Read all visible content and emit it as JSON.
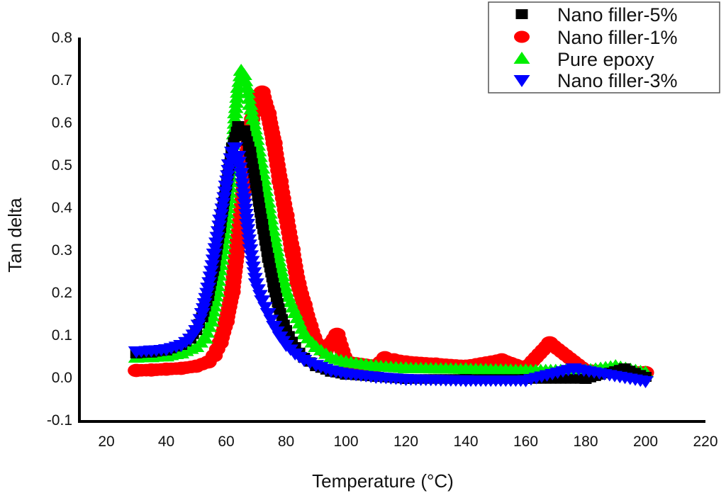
{
  "chart_data": {
    "type": "scatter",
    "title": "",
    "xlabel": "Temperature (°C)",
    "ylabel": "Tan delta",
    "xlim": [
      20,
      220
    ],
    "ylim": [
      -0.1,
      0.8
    ],
    "xticks": [
      "20",
      "40",
      "60",
      "80",
      "100",
      "120",
      "140",
      "160",
      "180",
      "200",
      "220"
    ],
    "yticks": [
      "0.8",
      "0.7",
      "0.6",
      "0.5",
      "0.4",
      "0.3",
      "0.2",
      "0.1",
      "0.0",
      "-0.1"
    ],
    "grid": false,
    "legend_position": "top-right",
    "series": [
      {
        "name": "Nano filler-5%",
        "marker": "square",
        "color": "#000000",
        "x": [
          30,
          35,
          40,
          45,
          48,
          50,
          52,
          54,
          56,
          58,
          60,
          62,
          64,
          66,
          68,
          70,
          72,
          74,
          76,
          78,
          80,
          83,
          86,
          90,
          95,
          100,
          110,
          120,
          140,
          160,
          180,
          193,
          200
        ],
        "y": [
          0.055,
          0.057,
          0.062,
          0.075,
          0.09,
          0.11,
          0.14,
          0.19,
          0.26,
          0.35,
          0.45,
          0.54,
          0.59,
          0.58,
          0.53,
          0.45,
          0.36,
          0.28,
          0.21,
          0.15,
          0.11,
          0.07,
          0.045,
          0.025,
          0.012,
          0.005,
          0.0,
          -0.005,
          -0.005,
          -0.005,
          -0.005,
          0.02,
          0.0
        ]
      },
      {
        "name": "Nano filler-1%",
        "marker": "circle",
        "color": "#ff0000",
        "x": [
          30,
          35,
          40,
          45,
          50,
          54,
          56,
          58,
          60,
          62,
          64,
          66,
          68,
          70,
          72,
          74,
          76,
          78,
          80,
          82,
          84,
          86,
          88,
          90,
          93,
          97,
          100,
          110,
          113,
          116,
          120,
          130,
          140,
          152,
          160,
          168,
          180,
          200
        ],
        "y": [
          0.015,
          0.016,
          0.018,
          0.02,
          0.025,
          0.035,
          0.05,
          0.08,
          0.13,
          0.2,
          0.32,
          0.46,
          0.58,
          0.66,
          0.67,
          0.62,
          0.55,
          0.46,
          0.38,
          0.3,
          0.22,
          0.17,
          0.12,
          0.08,
          0.06,
          0.1,
          0.035,
          0.025,
          0.045,
          0.04,
          0.035,
          0.03,
          0.025,
          0.04,
          0.02,
          0.08,
          0.015,
          0.01
        ]
      },
      {
        "name": "Pure epoxy",
        "marker": "triangle-up",
        "color": "#00ee00",
        "x": [
          30,
          35,
          40,
          45,
          50,
          53,
          55,
          57,
          59,
          61,
          62,
          63,
          64,
          65,
          66,
          67,
          68,
          70,
          72,
          74,
          76,
          78,
          80,
          83,
          86,
          90,
          95,
          100,
          110,
          120,
          140,
          160,
          180,
          190,
          200
        ],
        "y": [
          0.045,
          0.046,
          0.048,
          0.055,
          0.07,
          0.09,
          0.13,
          0.2,
          0.3,
          0.42,
          0.52,
          0.62,
          0.68,
          0.72,
          0.71,
          0.68,
          0.64,
          0.57,
          0.49,
          0.41,
          0.33,
          0.26,
          0.2,
          0.15,
          0.1,
          0.07,
          0.045,
          0.035,
          0.025,
          0.02,
          0.018,
          0.015,
          0.015,
          0.025,
          0.01
        ]
      },
      {
        "name": "Nano filler-3%",
        "marker": "triangle-down",
        "color": "#0000ff",
        "x": [
          30,
          35,
          40,
          45,
          48,
          50,
          52,
          54,
          56,
          58,
          60,
          61,
          62,
          63,
          64,
          65,
          66,
          67,
          68,
          70,
          72,
          74,
          76,
          78,
          80,
          83,
          86,
          90,
          95,
          100,
          110,
          120,
          140,
          160,
          176,
          200
        ],
        "y": [
          0.06,
          0.062,
          0.065,
          0.075,
          0.09,
          0.11,
          0.15,
          0.21,
          0.29,
          0.37,
          0.45,
          0.5,
          0.53,
          0.54,
          0.52,
          0.48,
          0.42,
          0.36,
          0.3,
          0.22,
          0.18,
          0.15,
          0.12,
          0.095,
          0.075,
          0.055,
          0.04,
          0.028,
          0.015,
          0.008,
          0.0,
          -0.005,
          -0.008,
          -0.008,
          0.02,
          -0.01
        ]
      }
    ]
  }
}
